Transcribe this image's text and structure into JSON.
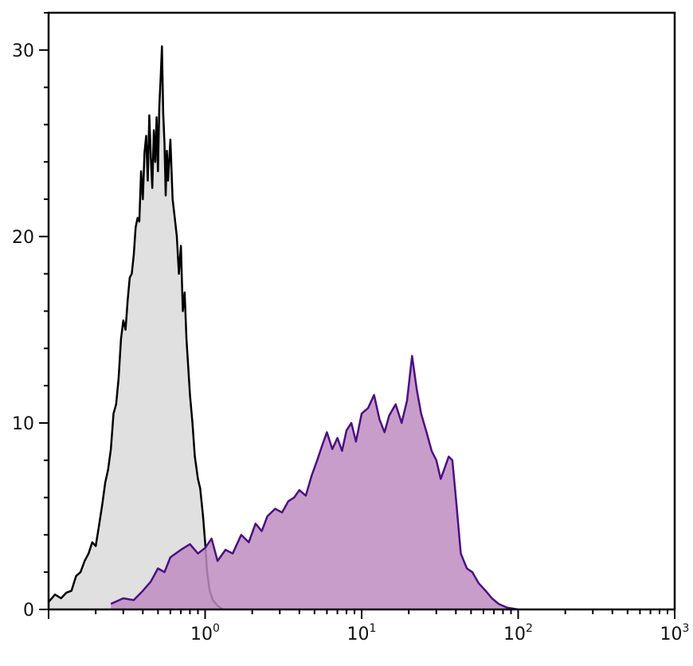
{
  "chart_data": {
    "type": "area",
    "title": "",
    "xlabel": "",
    "ylabel": "",
    "x_scale": "log",
    "xlim": [
      0.1,
      1000
    ],
    "ylim": [
      0,
      32
    ],
    "grid": false,
    "x_ticks": [
      {
        "value": 1,
        "base": "10",
        "exp": "0"
      },
      {
        "value": 10,
        "base": "10",
        "exp": "1"
      },
      {
        "value": 100,
        "base": "10",
        "exp": "2"
      },
      {
        "value": 1000,
        "base": "10",
        "exp": "3"
      }
    ],
    "y_ticks": [
      {
        "value": 0,
        "label": "0"
      },
      {
        "value": 10,
        "label": "10"
      },
      {
        "value": 20,
        "label": "20"
      },
      {
        "value": 30,
        "label": "30"
      }
    ],
    "series": [
      {
        "fill": "#e0e0e0",
        "stroke": "#000000",
        "points": [
          [
            0.1,
            0.4
          ],
          [
            0.11,
            0.8
          ],
          [
            0.12,
            0.6
          ],
          [
            0.13,
            0.9
          ],
          [
            0.14,
            1.0
          ],
          [
            0.15,
            1.8
          ],
          [
            0.16,
            2.0
          ],
          [
            0.17,
            2.6
          ],
          [
            0.18,
            3.0
          ],
          [
            0.19,
            3.6
          ],
          [
            0.2,
            3.4
          ],
          [
            0.21,
            4.5
          ],
          [
            0.22,
            5.6
          ],
          [
            0.23,
            6.8
          ],
          [
            0.24,
            7.5
          ],
          [
            0.25,
            8.6
          ],
          [
            0.26,
            10.5
          ],
          [
            0.27,
            11.0
          ],
          [
            0.28,
            12.4
          ],
          [
            0.29,
            14.5
          ],
          [
            0.3,
            15.5
          ],
          [
            0.31,
            15.0
          ],
          [
            0.32,
            16.6
          ],
          [
            0.33,
            17.8
          ],
          [
            0.34,
            18.0
          ],
          [
            0.35,
            19.0
          ],
          [
            0.36,
            20.5
          ],
          [
            0.37,
            21.0
          ],
          [
            0.38,
            20.8
          ],
          [
            0.39,
            23.5
          ],
          [
            0.4,
            22.0
          ],
          [
            0.41,
            24.5
          ],
          [
            0.42,
            25.4
          ],
          [
            0.43,
            23.0
          ],
          [
            0.44,
            26.5
          ],
          [
            0.45,
            24.2
          ],
          [
            0.46,
            22.6
          ],
          [
            0.47,
            25.7
          ],
          [
            0.48,
            24.0
          ],
          [
            0.49,
            26.4
          ],
          [
            0.5,
            23.5
          ],
          [
            0.51,
            27.0
          ],
          [
            0.52,
            28.5
          ],
          [
            0.53,
            30.2
          ],
          [
            0.54,
            26.6
          ],
          [
            0.55,
            25.0
          ],
          [
            0.56,
            22.2
          ],
          [
            0.57,
            24.6
          ],
          [
            0.58,
            23.0
          ],
          [
            0.6,
            25.2
          ],
          [
            0.62,
            22.0
          ],
          [
            0.64,
            21.0
          ],
          [
            0.66,
            20.0
          ],
          [
            0.68,
            18.0
          ],
          [
            0.7,
            19.5
          ],
          [
            0.72,
            16.0
          ],
          [
            0.74,
            17.0
          ],
          [
            0.76,
            14.5
          ],
          [
            0.78,
            13.0
          ],
          [
            0.8,
            11.5
          ],
          [
            0.83,
            10.0
          ],
          [
            0.86,
            8.2
          ],
          [
            0.9,
            7.0
          ],
          [
            0.93,
            6.5
          ],
          [
            0.97,
            5.0
          ],
          [
            1.0,
            3.6
          ],
          [
            1.03,
            2.0
          ],
          [
            1.07,
            1.0
          ],
          [
            1.12,
            0.5
          ],
          [
            1.2,
            0.2
          ],
          [
            1.3,
            0.0
          ]
        ]
      },
      {
        "fill": "#bf8cc0",
        "stroke": "#4b0f86",
        "points": [
          [
            0.25,
            0.3
          ],
          [
            0.3,
            0.6
          ],
          [
            0.35,
            0.5
          ],
          [
            0.4,
            1.0
          ],
          [
            0.45,
            1.5
          ],
          [
            0.5,
            2.2
          ],
          [
            0.55,
            2.0
          ],
          [
            0.6,
            2.8
          ],
          [
            0.7,
            3.2
          ],
          [
            0.8,
            3.5
          ],
          [
            0.9,
            3.0
          ],
          [
            1.0,
            3.3
          ],
          [
            1.1,
            3.8
          ],
          [
            1.2,
            2.6
          ],
          [
            1.35,
            3.2
          ],
          [
            1.5,
            3.0
          ],
          [
            1.7,
            4.0
          ],
          [
            1.9,
            3.6
          ],
          [
            2.1,
            4.6
          ],
          [
            2.3,
            4.2
          ],
          [
            2.5,
            5.0
          ],
          [
            2.8,
            5.4
          ],
          [
            3.1,
            5.2
          ],
          [
            3.4,
            5.8
          ],
          [
            3.7,
            6.0
          ],
          [
            4.0,
            6.4
          ],
          [
            4.4,
            6.1
          ],
          [
            4.8,
            7.2
          ],
          [
            5.2,
            8.0
          ],
          [
            5.6,
            8.8
          ],
          [
            6.0,
            9.5
          ],
          [
            6.5,
            8.6
          ],
          [
            7.0,
            9.2
          ],
          [
            7.5,
            8.5
          ],
          [
            8.0,
            9.6
          ],
          [
            8.6,
            10.0
          ],
          [
            9.2,
            9.0
          ],
          [
            10.0,
            10.5
          ],
          [
            11.0,
            10.8
          ],
          [
            12.0,
            11.5
          ],
          [
            13.0,
            10.2
          ],
          [
            14.0,
            9.5
          ],
          [
            15.0,
            10.4
          ],
          [
            16.5,
            11.0
          ],
          [
            18.0,
            10.0
          ],
          [
            19.5,
            11.2
          ],
          [
            21.0,
            13.6
          ],
          [
            22.5,
            11.8
          ],
          [
            24.0,
            10.5
          ],
          [
            26.0,
            9.5
          ],
          [
            28.0,
            8.5
          ],
          [
            30.0,
            8.0
          ],
          [
            32.0,
            7.0
          ],
          [
            34.0,
            7.6
          ],
          [
            36.0,
            8.2
          ],
          [
            38.0,
            8.0
          ],
          [
            40.0,
            6.0
          ],
          [
            43.0,
            3.0
          ],
          [
            47.0,
            2.2
          ],
          [
            51.0,
            2.0
          ],
          [
            56.0,
            1.4
          ],
          [
            62.0,
            1.0
          ],
          [
            68.0,
            0.6
          ],
          [
            75.0,
            0.3
          ],
          [
            85.0,
            0.1
          ],
          [
            100.0,
            0.0
          ]
        ]
      }
    ]
  }
}
